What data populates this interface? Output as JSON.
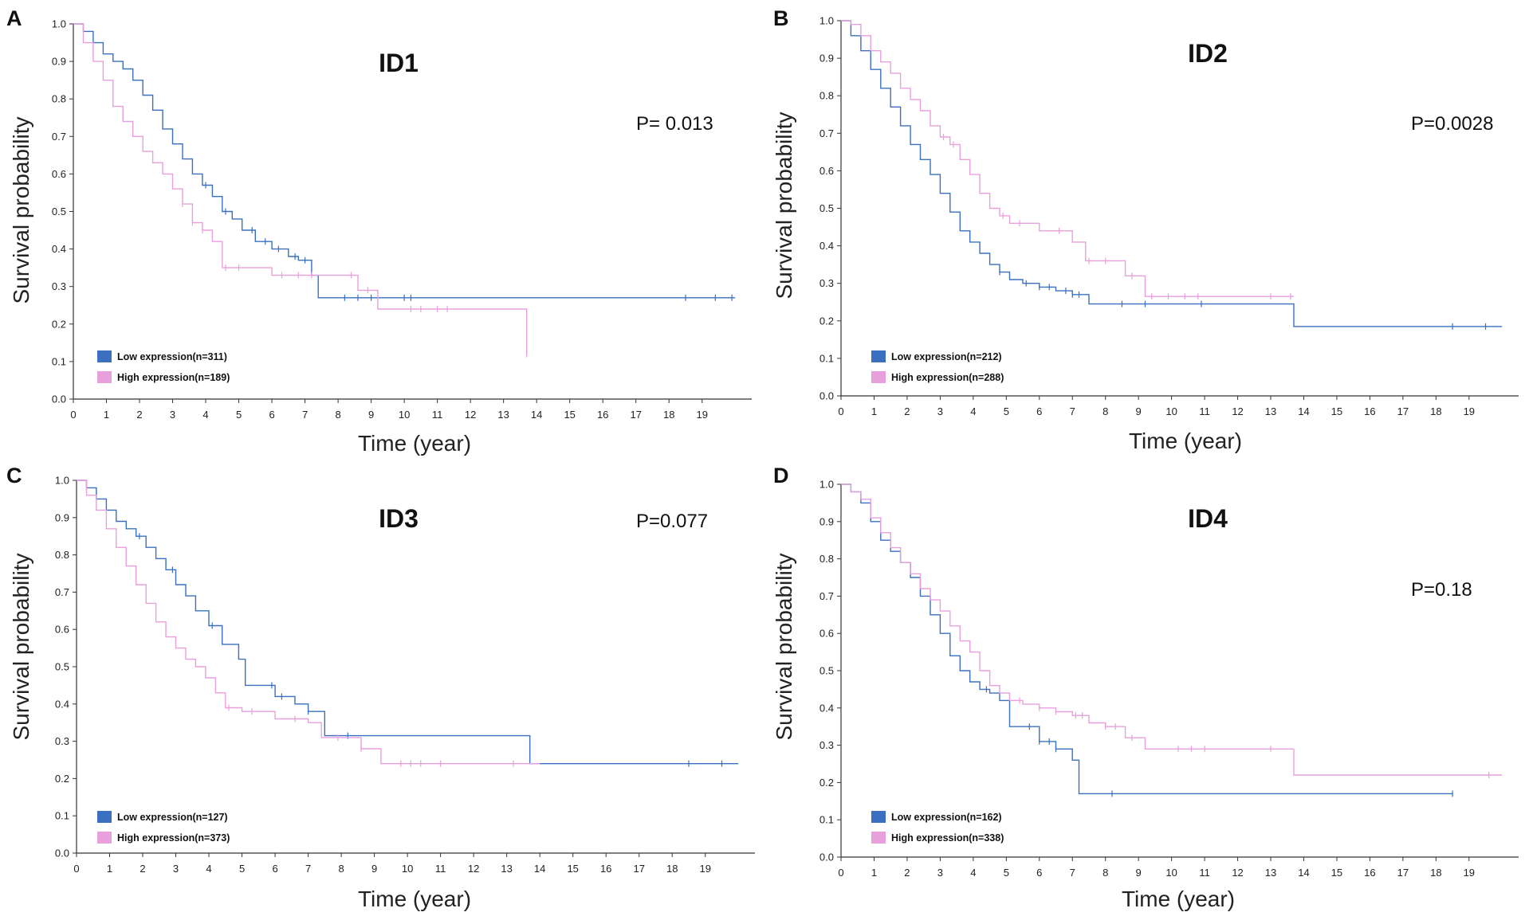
{
  "colors": {
    "low": "#3a70bf",
    "high": "#e8a0dc"
  },
  "chart_data": [
    {
      "type": "line",
      "panel": "A",
      "title": "ID1",
      "p_value": "P= 0.013",
      "xlabel": "Time (year)",
      "ylabel": "Survival probability",
      "xlim": [
        0,
        20
      ],
      "ylim": [
        0,
        1
      ],
      "xticks": [
        0,
        1,
        2,
        3,
        4,
        5,
        6,
        7,
        8,
        9,
        10,
        11,
        12,
        13,
        14,
        15,
        16,
        17,
        18,
        19
      ],
      "yticks": [
        0.0,
        0.1,
        0.2,
        0.3,
        0.4,
        0.5,
        0.6,
        0.7,
        0.8,
        0.9,
        1.0
      ],
      "series": [
        {
          "name": "Low expression(n=311)",
          "group": "low",
          "x": [
            0,
            0.3,
            0.6,
            0.9,
            1.2,
            1.5,
            1.8,
            2.1,
            2.4,
            2.7,
            3.0,
            3.3,
            3.6,
            3.9,
            4.2,
            4.5,
            4.8,
            5.1,
            5.5,
            6.0,
            6.5,
            6.8,
            7.2,
            7.4,
            9.0,
            20
          ],
          "y": [
            1.0,
            0.98,
            0.95,
            0.92,
            0.9,
            0.88,
            0.85,
            0.81,
            0.77,
            0.72,
            0.68,
            0.64,
            0.6,
            0.57,
            0.54,
            0.5,
            0.48,
            0.45,
            0.42,
            0.4,
            0.38,
            0.37,
            0.33,
            0.27,
            0.27,
            0.27
          ],
          "censor_x": [
            4.0,
            4.6,
            5.4,
            5.8,
            6.2,
            6.7,
            7.0,
            8.2,
            8.6,
            9.0,
            10.0,
            10.2,
            18.5,
            19.4,
            19.9
          ]
        },
        {
          "name": "High expression(n=189)",
          "group": "high",
          "x": [
            0,
            0.3,
            0.6,
            0.9,
            1.2,
            1.5,
            1.8,
            2.1,
            2.4,
            2.7,
            3.0,
            3.3,
            3.6,
            3.9,
            4.2,
            4.5,
            5.0,
            6.0,
            7.0,
            8.0,
            8.6,
            9.2,
            10.0,
            13.6,
            13.7
          ],
          "y": [
            1.0,
            0.95,
            0.9,
            0.85,
            0.78,
            0.74,
            0.7,
            0.66,
            0.63,
            0.6,
            0.56,
            0.52,
            0.47,
            0.45,
            0.42,
            0.35,
            0.35,
            0.33,
            0.33,
            0.33,
            0.29,
            0.24,
            0.24,
            0.24,
            0.12
          ],
          "censor_x": [
            3.3,
            3.6,
            3.9,
            4.6,
            5.0,
            6.3,
            6.8,
            7.2,
            8.4,
            8.9,
            10.2,
            10.5,
            11.0,
            11.3,
            13.7
          ]
        }
      ]
    },
    {
      "type": "line",
      "panel": "B",
      "title": "ID2",
      "p_value": "P=0.0028",
      "xlabel": "Time (year)",
      "ylabel": "Survival probability",
      "xlim": [
        0,
        20
      ],
      "ylim": [
        0,
        1
      ],
      "xticks": [
        0,
        1,
        2,
        3,
        4,
        5,
        6,
        7,
        8,
        9,
        10,
        11,
        12,
        13,
        14,
        15,
        16,
        17,
        18,
        19
      ],
      "yticks": [
        0.0,
        0.1,
        0.2,
        0.3,
        0.4,
        0.5,
        0.6,
        0.7,
        0.8,
        0.9,
        1.0
      ],
      "series": [
        {
          "name": "Low expression(n=212)",
          "group": "low",
          "x": [
            0,
            0.3,
            0.6,
            0.9,
            1.2,
            1.5,
            1.8,
            2.1,
            2.4,
            2.7,
            3.0,
            3.3,
            3.6,
            3.9,
            4.2,
            4.5,
            4.8,
            5.1,
            5.5,
            6.0,
            6.5,
            7.0,
            7.5,
            9.0,
            13.6,
            13.7,
            20
          ],
          "y": [
            1.0,
            0.96,
            0.92,
            0.87,
            0.82,
            0.77,
            0.72,
            0.67,
            0.63,
            0.59,
            0.54,
            0.49,
            0.44,
            0.41,
            0.38,
            0.35,
            0.33,
            0.31,
            0.3,
            0.29,
            0.28,
            0.27,
            0.245,
            0.245,
            0.245,
            0.185,
            0.185
          ],
          "censor_x": [
            4.8,
            5.6,
            6.0,
            6.3,
            6.8,
            7.0,
            7.2,
            8.5,
            9.2,
            10.9,
            18.5,
            19.5
          ]
        },
        {
          "name": "High expression(n=288)",
          "group": "high",
          "x": [
            0,
            0.3,
            0.6,
            0.9,
            1.2,
            1.5,
            1.8,
            2.1,
            2.4,
            2.7,
            3.0,
            3.3,
            3.6,
            3.9,
            4.2,
            4.5,
            4.8,
            5.1,
            5.5,
            6.0,
            6.5,
            7.0,
            7.4,
            8.0,
            8.6,
            9.2,
            10.0,
            13.6,
            13.7
          ],
          "y": [
            1.0,
            0.99,
            0.96,
            0.92,
            0.89,
            0.86,
            0.82,
            0.79,
            0.76,
            0.72,
            0.69,
            0.67,
            0.63,
            0.59,
            0.54,
            0.5,
            0.48,
            0.46,
            0.46,
            0.44,
            0.44,
            0.41,
            0.36,
            0.36,
            0.32,
            0.265,
            0.265,
            0.265,
            0.265
          ],
          "censor_x": [
            3.1,
            3.4,
            4.9,
            5.4,
            6.6,
            7.5,
            8.0,
            8.8,
            9.4,
            9.9,
            10.4,
            10.8,
            13.0,
            13.6
          ]
        }
      ]
    },
    {
      "type": "line",
      "panel": "C",
      "title": "ID3",
      "p_value": "P=0.077",
      "xlabel": "Time (year)",
      "ylabel": "Survival probability",
      "xlim": [
        0,
        20
      ],
      "ylim": [
        0,
        1
      ],
      "xticks": [
        0,
        1,
        2,
        3,
        4,
        5,
        6,
        7,
        8,
        9,
        10,
        11,
        12,
        13,
        14,
        15,
        16,
        17,
        18,
        19
      ],
      "yticks": [
        0.0,
        0.1,
        0.2,
        0.3,
        0.4,
        0.5,
        0.6,
        0.7,
        0.8,
        0.9,
        1.0
      ],
      "series": [
        {
          "name": "Low expression(n=127)",
          "group": "low",
          "x": [
            0,
            0.3,
            0.6,
            0.9,
            1.2,
            1.5,
            1.8,
            2.1,
            2.4,
            2.7,
            3.0,
            3.3,
            3.6,
            4.0,
            4.4,
            4.9,
            5.1,
            5.5,
            6.0,
            6.6,
            7.0,
            7.5,
            13.6,
            13.7,
            20
          ],
          "y": [
            1.0,
            0.98,
            0.95,
            0.92,
            0.89,
            0.87,
            0.85,
            0.82,
            0.79,
            0.76,
            0.72,
            0.69,
            0.65,
            0.61,
            0.56,
            0.52,
            0.45,
            0.45,
            0.42,
            0.4,
            0.38,
            0.315,
            0.315,
            0.24,
            0.24
          ],
          "censor_x": [
            1.9,
            2.9,
            4.1,
            5.9,
            6.2,
            7.0,
            8.2,
            18.5,
            19.5
          ]
        },
        {
          "name": "High expression(n=373)",
          "group": "high",
          "x": [
            0,
            0.3,
            0.6,
            0.9,
            1.2,
            1.5,
            1.8,
            2.1,
            2.4,
            2.7,
            3.0,
            3.3,
            3.6,
            3.9,
            4.2,
            4.5,
            5.0,
            6.0,
            7.0,
            7.4,
            8.0,
            8.6,
            9.2,
            10.0,
            13.6,
            14.0
          ],
          "y": [
            1.0,
            0.96,
            0.92,
            0.87,
            0.82,
            0.77,
            0.72,
            0.67,
            0.62,
            0.58,
            0.55,
            0.52,
            0.5,
            0.47,
            0.43,
            0.39,
            0.38,
            0.36,
            0.35,
            0.31,
            0.31,
            0.28,
            0.24,
            0.24,
            0.24,
            0.24
          ],
          "censor_x": [
            4.6,
            5.3,
            6.6,
            7.9,
            8.6,
            9.8,
            10.1,
            10.4,
            11.0,
            13.2
          ]
        }
      ]
    },
    {
      "type": "line",
      "panel": "D",
      "title": "ID4",
      "p_value": "P=0.18",
      "xlabel": "Time (year)",
      "ylabel": "Survival probability",
      "xlim": [
        0,
        20
      ],
      "ylim": [
        0,
        1
      ],
      "xticks": [
        0,
        1,
        2,
        3,
        4,
        5,
        6,
        7,
        8,
        9,
        10,
        11,
        12,
        13,
        14,
        15,
        16,
        17,
        18,
        19
      ],
      "yticks": [
        0.0,
        0.1,
        0.2,
        0.3,
        0.4,
        0.5,
        0.6,
        0.7,
        0.8,
        0.9,
        1.0
      ],
      "series": [
        {
          "name": "Low expression(n=162)",
          "group": "low",
          "x": [
            0,
            0.3,
            0.6,
            0.9,
            1.2,
            1.5,
            1.8,
            2.1,
            2.4,
            2.7,
            3.0,
            3.3,
            3.6,
            3.9,
            4.2,
            4.5,
            4.8,
            5.1,
            5.5,
            6.0,
            6.5,
            7.0,
            7.2,
            8.0,
            18.5
          ],
          "y": [
            1.0,
            0.98,
            0.95,
            0.9,
            0.85,
            0.82,
            0.79,
            0.75,
            0.7,
            0.65,
            0.6,
            0.54,
            0.5,
            0.47,
            0.45,
            0.44,
            0.42,
            0.35,
            0.35,
            0.31,
            0.29,
            0.26,
            0.17,
            0.17,
            0.17
          ],
          "censor_x": [
            4.4,
            5.7,
            6.0,
            6.3,
            6.5,
            8.2,
            18.5
          ]
        },
        {
          "name": "High expression(n=338)",
          "group": "high",
          "x": [
            0,
            0.3,
            0.6,
            0.9,
            1.2,
            1.5,
            1.8,
            2.1,
            2.4,
            2.7,
            3.0,
            3.3,
            3.6,
            3.9,
            4.2,
            4.5,
            4.8,
            5.1,
            5.5,
            6.0,
            6.5,
            7.0,
            7.5,
            8.0,
            8.6,
            9.2,
            10.0,
            13.6,
            13.7,
            20
          ],
          "y": [
            1.0,
            0.98,
            0.96,
            0.91,
            0.87,
            0.83,
            0.79,
            0.76,
            0.72,
            0.69,
            0.66,
            0.62,
            0.58,
            0.55,
            0.5,
            0.46,
            0.44,
            0.42,
            0.41,
            0.4,
            0.39,
            0.38,
            0.36,
            0.35,
            0.32,
            0.29,
            0.29,
            0.29,
            0.22,
            0.22
          ],
          "censor_x": [
            5.4,
            6.0,
            6.5,
            7.1,
            7.3,
            8.0,
            8.3,
            8.8,
            10.2,
            10.6,
            11.0,
            13.0,
            19.6
          ]
        }
      ]
    }
  ]
}
